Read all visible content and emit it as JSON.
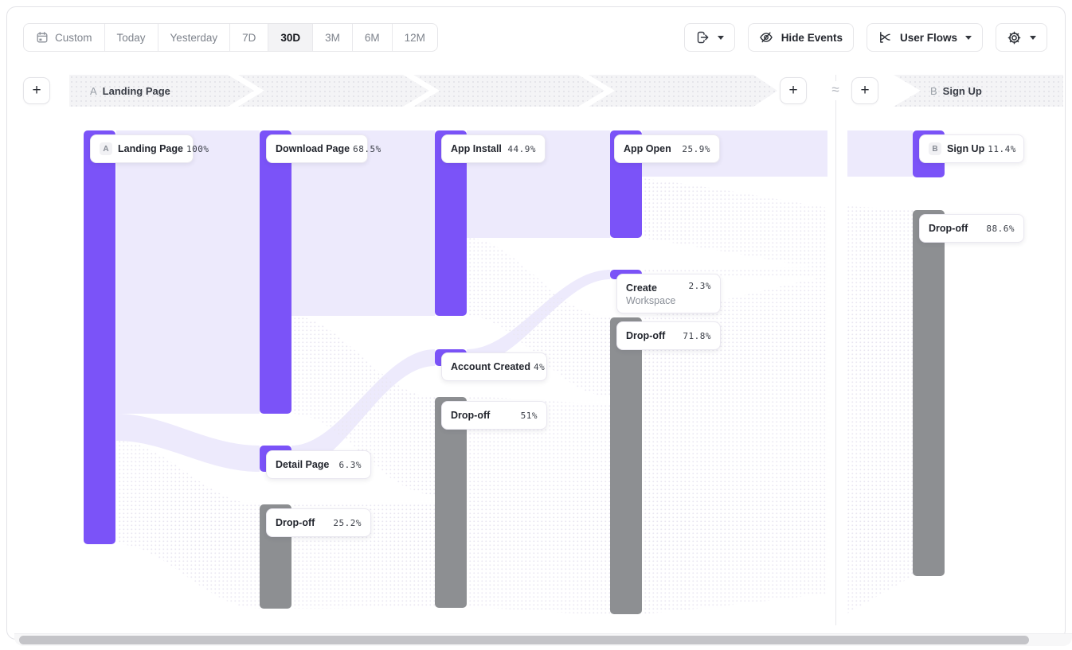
{
  "toolbar": {
    "date_ranges": [
      {
        "label": "Custom",
        "icon": "calendar-icon",
        "selected": false
      },
      {
        "label": "Today",
        "selected": false
      },
      {
        "label": "Yesterday",
        "selected": false
      },
      {
        "label": "7D",
        "selected": false
      },
      {
        "label": "30D",
        "selected": true
      },
      {
        "label": "3M",
        "selected": false
      },
      {
        "label": "6M",
        "selected": false
      },
      {
        "label": "12M",
        "selected": false
      }
    ],
    "hide_events_label": "Hide Events",
    "view_mode_label": "User Flows"
  },
  "steps": {
    "add_button": "+",
    "separator": "≈",
    "step_a": {
      "letter": "A",
      "name": "Landing Page"
    },
    "step_b": {
      "letter": "B",
      "name": "Sign Up"
    }
  },
  "colors": {
    "step_bar": "#7B53F8",
    "drop_bar": "#8D8F92",
    "flow": "#EDEAFC",
    "band_bg": "#F4F4F6"
  },
  "chart_data": {
    "type": "sankey",
    "title": "User Flows from Landing Page (A) to Sign Up (B), 30D",
    "legend_position": "none",
    "nodes": [
      {
        "id": "landing-page",
        "prefix": "A",
        "label": "Landing Page",
        "value": 100,
        "value_label": "100%",
        "kind": "step"
      },
      {
        "id": "download-page",
        "label": "Download Page",
        "value": 68.5,
        "value_label": "68.5%",
        "kind": "step"
      },
      {
        "id": "detail-page",
        "label": "Detail Page",
        "value": 6.3,
        "value_label": "6.3%",
        "kind": "step"
      },
      {
        "id": "drop-off-1",
        "label": "Drop-off",
        "value": 25.2,
        "value_label": "25.2%",
        "kind": "drop"
      },
      {
        "id": "app-install",
        "label": "App Install",
        "value": 44.9,
        "value_label": "44.9%",
        "kind": "step"
      },
      {
        "id": "account-created",
        "label": "Account Created",
        "value": 4,
        "value_label": "4%",
        "kind": "step"
      },
      {
        "id": "drop-off-2",
        "label": "Drop-off",
        "value": 51,
        "value_label": "51%",
        "kind": "drop"
      },
      {
        "id": "app-open",
        "label": "App Open",
        "value": 25.9,
        "value_label": "25.9%",
        "kind": "step"
      },
      {
        "id": "create-workspace",
        "label": "Create",
        "label2": "Workspace",
        "value": 2.3,
        "value_label": "2.3%",
        "kind": "step"
      },
      {
        "id": "drop-off-3",
        "label": "Drop-off",
        "value": 71.8,
        "value_label": "71.8%",
        "kind": "drop"
      },
      {
        "id": "sign-up",
        "prefix": "B",
        "label": "Sign Up",
        "value": 11.4,
        "value_label": "11.4%",
        "kind": "step"
      },
      {
        "id": "drop-off-4",
        "label": "Drop-off",
        "value": 88.6,
        "value_label": "88.6%",
        "kind": "drop"
      }
    ],
    "links": [
      {
        "source": "landing-page",
        "target": "download-page",
        "value": 68.5
      },
      {
        "source": "landing-page",
        "target": "detail-page",
        "value": 6.3
      },
      {
        "source": "landing-page",
        "target": "drop-off-1",
        "value": 25.2
      },
      {
        "source": "download-page",
        "target": "app-install",
        "value": 44.9
      },
      {
        "source": "download-page",
        "target": "drop-off-2",
        "value": 23.6
      },
      {
        "source": "detail-page",
        "target": "account-created",
        "value": 4
      },
      {
        "source": "detail-page",
        "target": "drop-off-2",
        "value": 2.3
      },
      {
        "source": "drop-off-1",
        "target": "drop-off-2",
        "value": 25.2
      },
      {
        "source": "app-install",
        "target": "app-open",
        "value": 25.9
      },
      {
        "source": "app-install",
        "target": "drop-off-3",
        "value": 19
      },
      {
        "source": "account-created",
        "target": "create-workspace",
        "value": 2.3
      },
      {
        "source": "account-created",
        "target": "drop-off-3",
        "value": 1.7
      },
      {
        "source": "drop-off-2",
        "target": "drop-off-3",
        "value": 51
      },
      {
        "source": "app-open",
        "target": "sign-up",
        "value": 11.4
      },
      {
        "source": "app-open",
        "target": "drop-off-4",
        "value": 14.5
      },
      {
        "source": "create-workspace",
        "target": "drop-off-4",
        "value": 2.3
      },
      {
        "source": "drop-off-3",
        "target": "drop-off-4",
        "value": 71.8
      }
    ]
  }
}
